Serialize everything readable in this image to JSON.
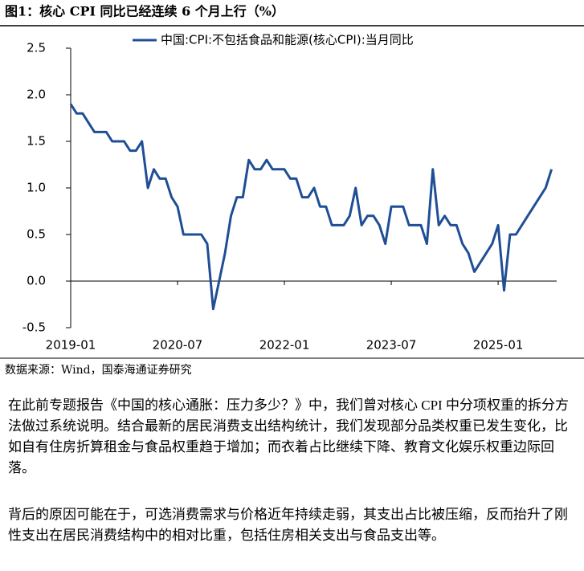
{
  "figure_title": "图1：核心 CPI 同比已经连续 6 个月上行（%）",
  "source": "数据来源：Wind，国泰海通证券研究",
  "paragraphs": [
    "在此前专题报告《中国的核心通胀：压力多少？》中，我们曾对核心 CPI 中分项权重的拆分方法做过系统说明。结合最新的居民消费支出结构统计，我们发现部分品类权重已发生变化，比如自有住房折算租金与食品权重趋于增加；而衣着占比继续下降、教育文化娱乐权重边际回落。",
    "背后的原因可能在于，可选消费需求与价格近年持续走弱，其支出占比被压缩，反而抬升了刚性支出在居民消费结构中的相对比重，包括住房相关支出与食品支出等。"
  ],
  "chart_data": {
    "type": "line",
    "x": [
      "2019-01",
      "2019-02",
      "2019-03",
      "2019-04",
      "2019-05",
      "2019-06",
      "2019-07",
      "2019-08",
      "2019-09",
      "2019-10",
      "2019-11",
      "2019-12",
      "2020-01",
      "2020-02",
      "2020-03",
      "2020-04",
      "2020-05",
      "2020-06",
      "2020-07",
      "2020-08",
      "2020-09",
      "2020-10",
      "2020-11",
      "2020-12",
      "2021-01",
      "2021-02",
      "2021-03",
      "2021-04",
      "2021-05",
      "2021-06",
      "2021-07",
      "2021-08",
      "2021-09",
      "2021-10",
      "2021-11",
      "2021-12",
      "2022-01",
      "2022-02",
      "2022-03",
      "2022-04",
      "2022-05",
      "2022-06",
      "2022-07",
      "2022-08",
      "2022-09",
      "2022-10",
      "2022-11",
      "2022-12",
      "2023-01",
      "2023-02",
      "2023-03",
      "2023-04",
      "2023-05",
      "2023-06",
      "2023-07",
      "2023-08",
      "2023-09",
      "2023-10",
      "2023-11",
      "2023-12",
      "2024-01",
      "2024-02",
      "2024-03",
      "2024-04",
      "2024-05",
      "2024-06",
      "2024-07",
      "2024-08",
      "2024-09",
      "2024-10",
      "2024-11",
      "2024-12",
      "2025-01",
      "2025-02",
      "2025-03",
      "2025-04",
      "2025-05",
      "2025-06",
      "2025-07",
      "2025-08",
      "2025-09",
      "2025-10"
    ],
    "series": [
      {
        "name": "中国:CPI:不包括食品和能源(核心CPI):当月同比",
        "color": "#1f4e96",
        "values": [
          1.9,
          1.8,
          1.8,
          1.7,
          1.6,
          1.6,
          1.6,
          1.5,
          1.5,
          1.5,
          1.4,
          1.4,
          1.5,
          1.0,
          1.2,
          1.1,
          1.1,
          0.9,
          0.8,
          0.5,
          0.5,
          0.5,
          0.5,
          0.4,
          -0.3,
          0.0,
          0.3,
          0.7,
          0.9,
          0.9,
          1.3,
          1.2,
          1.2,
          1.3,
          1.2,
          1.2,
          1.2,
          1.1,
          1.1,
          0.9,
          0.9,
          1.0,
          0.8,
          0.8,
          0.6,
          0.6,
          0.6,
          0.7,
          1.0,
          0.6,
          0.7,
          0.7,
          0.6,
          0.4,
          0.8,
          0.8,
          0.8,
          0.6,
          0.6,
          0.6,
          0.4,
          1.2,
          0.6,
          0.7,
          0.6,
          0.6,
          0.4,
          0.3,
          0.1,
          0.2,
          0.3,
          0.4,
          0.6,
          -0.1,
          0.5,
          0.5,
          0.6,
          0.7,
          0.8,
          0.9,
          1.0,
          1.2
        ]
      }
    ],
    "ylim": [
      -0.5,
      2.5
    ],
    "yticks": [
      {
        "value": 2.5,
        "label": "2.5"
      },
      {
        "value": 2,
        "label": "2.0"
      },
      {
        "value": 1.5,
        "label": "1.5"
      },
      {
        "value": 1,
        "label": "1.0"
      },
      {
        "value": 0.5,
        "label": "0.5"
      },
      {
        "value": 0,
        "label": "0.0"
      },
      -0.5
    ],
    "xticks": [
      "2019-01",
      "2020-07",
      "2022-01",
      "2023-07",
      "2025-01"
    ]
  }
}
